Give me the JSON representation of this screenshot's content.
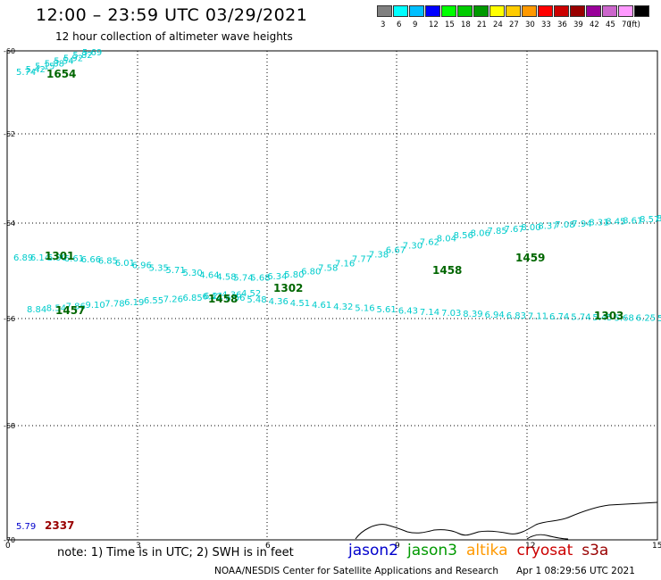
{
  "header": {
    "title": "12:00 – 23:59 UTC 03/29/2021",
    "subtitle": "12 hour collection of altimeter wave heights"
  },
  "colorbar": {
    "colors": [
      "#808080",
      "#00ffff",
      "#00bfff",
      "#0000ff",
      "#00ff00",
      "#00cc00",
      "#009900",
      "#ffff00",
      "#ffcc00",
      "#ff9900",
      "#ff0000",
      "#cc0000",
      "#990000",
      "#990099",
      "#cc66cc",
      "#ff99ff",
      "#000000"
    ],
    "labels": [
      "3",
      "6",
      "9",
      "12",
      "15",
      "18",
      "21",
      "24",
      "27",
      "30",
      "33",
      "36",
      "39",
      "42",
      "45",
      "70",
      "(ft)"
    ]
  },
  "axes": {
    "x_ticks": [
      "0",
      "3",
      "6",
      "9",
      "12",
      "15"
    ],
    "y_ticks": [
      "-60",
      "-62",
      "-64",
      "-66",
      "-68",
      "-70"
    ]
  },
  "tracks": [
    {
      "color": "#00cccc",
      "labels": [
        "5.74",
        "5.42",
        "5.15",
        "5.88",
        "5.54",
        "5.92",
        "5.82",
        "5.69"
      ]
    },
    {
      "color": "#00cccc",
      "labels": [
        "6.89",
        "6.14",
        "6.90",
        "6.61",
        "6.66",
        "6.85",
        "6.01",
        "6.96",
        "5.35",
        "5.71",
        "5.30",
        "4.64",
        "4.58",
        "5.74",
        "5.68",
        "6.34",
        "5.80",
        "6.80",
        "7.58",
        "7.16",
        "7.77",
        "7.38",
        "6.67",
        "7.30",
        "7.62",
        "8.04",
        "8.56",
        "8.06",
        "7.85",
        "7.67",
        "8.00",
        "8.37",
        "7.08",
        "7.94",
        "8.31",
        "8.45",
        "8.61",
        "8.57",
        "8.96"
      ]
    },
    {
      "color": "#00cccc",
      "labels": [
        "6.21",
        "6.56",
        "5.48",
        "4.36",
        "4.51",
        "4.61",
        "4.32",
        "5.16",
        "5.61",
        "6.43",
        "7.14",
        "7.03",
        "8.39",
        "6.94",
        "6.83",
        "7.11",
        "6.74",
        "5.74",
        "5.45",
        "5.68",
        "6.25",
        "5.15"
      ]
    },
    {
      "color": "#00cccc",
      "labels": [
        "8.84",
        "8.54",
        "7.86",
        "9.10",
        "7.78",
        "6.19",
        "6.55",
        "7.26",
        "6.85",
        "6.42",
        "4.36",
        "4.52"
      ]
    },
    {
      "color": "#0000cc",
      "labels": [
        "5.79"
      ]
    }
  ],
  "pass_times": [
    {
      "label": "1654",
      "color": "#006600"
    },
    {
      "label": "1301",
      "color": "#006600"
    },
    {
      "label": "1458",
      "color": "#006600"
    },
    {
      "label": "1302",
      "color": "#006600"
    },
    {
      "label": "1458",
      "color": "#006600"
    },
    {
      "label": "1459",
      "color": "#006600"
    },
    {
      "label": "1457",
      "color": "#006600"
    },
    {
      "label": "1303",
      "color": "#006600"
    },
    {
      "label": "2337",
      "color": "#990000"
    }
  ],
  "footer": {
    "note": "note:  1) Time is in UTC; 2) SWH is in feet",
    "credit": "NOAA/NESDIS Center for Satellite Applications and Research",
    "timestamp": "Apr  1 08:29:56 UTC 2021"
  },
  "satellites": [
    {
      "name": "jason2",
      "color": "#0000cc"
    },
    {
      "name": "jason3",
      "color": "#009900"
    },
    {
      "name": "altika",
      "color": "#ff9900"
    },
    {
      "name": "cryosat",
      "color": "#cc0000"
    },
    {
      "name": "s3a",
      "color": "#990000"
    }
  ]
}
